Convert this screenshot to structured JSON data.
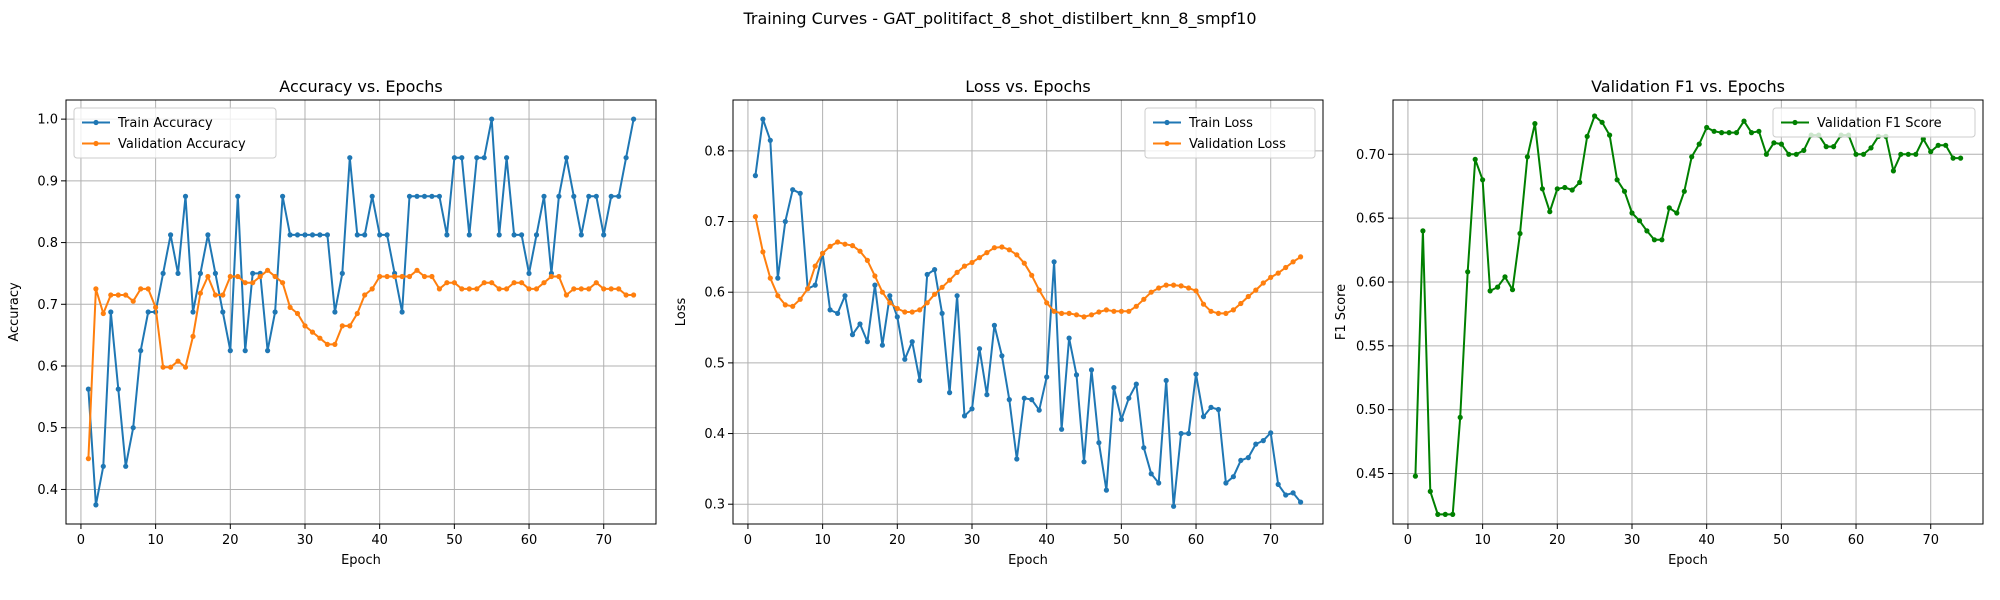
{
  "title": "Training Curves - GAT_politifact_8_shot_distilbert_knn_8_smpf10",
  "colors": {
    "train": "#1f77b4",
    "validation": "#ff7f0e",
    "f1": "#008000"
  },
  "chart_data": [
    {
      "type": "line",
      "title": "Accuracy vs. Epochs",
      "xlabel": "Epoch",
      "ylabel": "Accuracy",
      "xlim": [
        -2,
        77
      ],
      "ylim": [
        0.344,
        1.031
      ],
      "xticks": [
        0,
        10,
        20,
        30,
        40,
        50,
        60,
        70
      ],
      "yticks": [
        0.4,
        0.5,
        0.6,
        0.7,
        0.8,
        0.9,
        1.0
      ],
      "ytick_labels": [
        "0.4",
        "0.5",
        "0.6",
        "0.7",
        "0.8",
        "0.9",
        "1.0"
      ],
      "grid": true,
      "legend_loc": "upper left",
      "series": [
        {
          "name": "Train Accuracy",
          "color": "#1f77b4",
          "x": [
            1,
            2,
            3,
            4,
            5,
            6,
            7,
            8,
            9,
            10,
            11,
            12,
            13,
            14,
            15,
            16,
            17,
            18,
            19,
            20,
            21,
            22,
            23,
            24,
            25,
            26,
            27,
            28,
            29,
            30,
            31,
            32,
            33,
            34,
            35,
            36,
            37,
            38,
            39,
            40,
            41,
            42,
            43,
            44,
            45,
            46,
            47,
            48,
            49,
            50,
            51,
            52,
            53,
            54,
            55,
            56,
            57,
            58,
            59,
            60,
            61,
            62,
            63,
            64,
            65,
            66,
            67,
            68,
            69,
            70,
            71,
            72,
            73,
            74
          ],
          "y": [
            0.5625,
            0.375,
            0.4375,
            0.6875,
            0.5625,
            0.4375,
            0.5,
            0.625,
            0.6875,
            0.6875,
            0.75,
            0.8125,
            0.75,
            0.875,
            0.6875,
            0.75,
            0.8125,
            0.75,
            0.6875,
            0.625,
            0.875,
            0.625,
            0.75,
            0.75,
            0.625,
            0.6875,
            0.875,
            0.8125,
            0.8125,
            0.8125,
            0.8125,
            0.8125,
            0.8125,
            0.6875,
            0.75,
            0.9375,
            0.8125,
            0.8125,
            0.875,
            0.8125,
            0.8125,
            0.75,
            0.6875,
            0.875,
            0.875,
            0.875,
            0.875,
            0.875,
            0.8125,
            0.9375,
            0.9375,
            0.8125,
            0.9375,
            0.9375,
            1.0,
            0.8125,
            0.9375,
            0.8125,
            0.8125,
            0.75,
            0.8125,
            0.875,
            0.75,
            0.875,
            0.9375,
            0.875,
            0.8125,
            0.875,
            0.875,
            0.8125,
            0.875,
            0.875,
            0.9375,
            1.0
          ]
        },
        {
          "name": "Validation Accuracy",
          "color": "#ff7f0e",
          "x": [
            1,
            2,
            3,
            4,
            5,
            6,
            7,
            8,
            9,
            10,
            11,
            12,
            13,
            14,
            15,
            16,
            17,
            18,
            19,
            20,
            21,
            22,
            23,
            24,
            25,
            26,
            27,
            28,
            29,
            30,
            31,
            32,
            33,
            34,
            35,
            36,
            37,
            38,
            39,
            40,
            41,
            42,
            43,
            44,
            45,
            46,
            47,
            48,
            49,
            50,
            51,
            52,
            53,
            54,
            55,
            56,
            57,
            58,
            59,
            60,
            61,
            62,
            63,
            64,
            65,
            66,
            67,
            68,
            69,
            70,
            71,
            72,
            73,
            74
          ],
          "y": [
            0.45,
            0.725,
            0.685,
            0.715,
            0.715,
            0.715,
            0.705,
            0.725,
            0.725,
            0.695,
            0.598,
            0.598,
            0.608,
            0.598,
            0.648,
            0.718,
            0.745,
            0.715,
            0.715,
            0.745,
            0.745,
            0.735,
            0.735,
            0.745,
            0.755,
            0.745,
            0.735,
            0.695,
            0.685,
            0.665,
            0.655,
            0.645,
            0.635,
            0.635,
            0.665,
            0.665,
            0.685,
            0.715,
            0.725,
            0.745,
            0.745,
            0.745,
            0.745,
            0.745,
            0.755,
            0.745,
            0.745,
            0.725,
            0.735,
            0.735,
            0.725,
            0.725,
            0.725,
            0.735,
            0.735,
            0.725,
            0.725,
            0.735,
            0.735,
            0.725,
            0.725,
            0.735,
            0.745,
            0.745,
            0.715,
            0.725,
            0.725,
            0.725,
            0.735,
            0.725,
            0.725,
            0.725,
            0.715,
            0.715
          ]
        }
      ]
    },
    {
      "type": "line",
      "title": "Loss vs. Epochs",
      "xlabel": "Epoch",
      "ylabel": "Loss",
      "xlim": [
        -2,
        77
      ],
      "ylim": [
        0.272,
        0.872
      ],
      "xticks": [
        0,
        10,
        20,
        30,
        40,
        50,
        60,
        70
      ],
      "yticks": [
        0.3,
        0.4,
        0.5,
        0.6,
        0.7,
        0.8
      ],
      "ytick_labels": [
        "0.3",
        "0.4",
        "0.5",
        "0.6",
        "0.7",
        "0.8"
      ],
      "grid": true,
      "legend_loc": "upper right",
      "series": [
        {
          "name": "Train Loss",
          "color": "#1f77b4",
          "x": [
            1,
            2,
            3,
            4,
            5,
            6,
            7,
            8,
            9,
            10,
            11,
            12,
            13,
            14,
            15,
            16,
            17,
            18,
            19,
            20,
            21,
            22,
            23,
            24,
            25,
            26,
            27,
            28,
            29,
            30,
            31,
            32,
            33,
            34,
            35,
            36,
            37,
            38,
            39,
            40,
            41,
            42,
            43,
            44,
            45,
            46,
            47,
            48,
            49,
            50,
            51,
            52,
            53,
            54,
            55,
            56,
            57,
            58,
            59,
            60,
            61,
            62,
            63,
            64,
            65,
            66,
            67,
            68,
            69,
            70,
            71,
            72,
            73,
            74
          ],
          "y": [
            0.765,
            0.845,
            0.815,
            0.62,
            0.7,
            0.745,
            0.74,
            0.605,
            0.61,
            0.655,
            0.575,
            0.57,
            0.595,
            0.54,
            0.555,
            0.53,
            0.61,
            0.525,
            0.595,
            0.565,
            0.505,
            0.53,
            0.475,
            0.625,
            0.632,
            0.57,
            0.458,
            0.595,
            0.425,
            0.435,
            0.52,
            0.455,
            0.553,
            0.51,
            0.448,
            0.364,
            0.45,
            0.448,
            0.433,
            0.48,
            0.643,
            0.406,
            0.535,
            0.483,
            0.36,
            0.49,
            0.387,
            0.32,
            0.465,
            0.42,
            0.45,
            0.47,
            0.38,
            0.343,
            0.33,
            0.475,
            0.297,
            0.4,
            0.4,
            0.484,
            0.424,
            0.437,
            0.434,
            0.33,
            0.339,
            0.362,
            0.366,
            0.385,
            0.39,
            0.401,
            0.328,
            0.313,
            0.316,
            0.303
          ]
        },
        {
          "name": "Validation Loss",
          "color": "#ff7f0e",
          "x": [
            1,
            2,
            3,
            4,
            5,
            6,
            7,
            8,
            9,
            10,
            11,
            12,
            13,
            14,
            15,
            16,
            17,
            18,
            19,
            20,
            21,
            22,
            23,
            24,
            25,
            26,
            27,
            28,
            29,
            30,
            31,
            32,
            33,
            34,
            35,
            36,
            37,
            38,
            39,
            40,
            41,
            42,
            43,
            44,
            45,
            46,
            47,
            48,
            49,
            50,
            51,
            52,
            53,
            54,
            55,
            56,
            57,
            58,
            59,
            60,
            61,
            62,
            63,
            64,
            65,
            66,
            67,
            68,
            69,
            70,
            71,
            72,
            73,
            74
          ],
          "y": [
            0.707,
            0.657,
            0.62,
            0.595,
            0.582,
            0.58,
            0.59,
            0.605,
            0.637,
            0.655,
            0.665,
            0.671,
            0.668,
            0.666,
            0.658,
            0.645,
            0.623,
            0.6,
            0.585,
            0.577,
            0.572,
            0.572,
            0.575,
            0.585,
            0.597,
            0.607,
            0.617,
            0.628,
            0.637,
            0.642,
            0.649,
            0.656,
            0.663,
            0.664,
            0.66,
            0.653,
            0.641,
            0.624,
            0.603,
            0.585,
            0.573,
            0.57,
            0.57,
            0.568,
            0.565,
            0.568,
            0.572,
            0.575,
            0.573,
            0.573,
            0.573,
            0.58,
            0.59,
            0.6,
            0.606,
            0.61,
            0.61,
            0.609,
            0.606,
            0.602,
            0.583,
            0.573,
            0.57,
            0.57,
            0.575,
            0.584,
            0.594,
            0.603,
            0.613,
            0.621,
            0.627,
            0.635,
            0.643,
            0.65
          ]
        }
      ]
    },
    {
      "type": "line",
      "title": "Validation F1 vs. Epochs",
      "xlabel": "Epoch",
      "ylabel": "F1 Score",
      "xlim": [
        -2,
        77
      ],
      "ylim": [
        0.4105,
        0.7425
      ],
      "xticks": [
        0,
        10,
        20,
        30,
        40,
        50,
        60,
        70
      ],
      "yticks": [
        0.45,
        0.5,
        0.55,
        0.6,
        0.65,
        0.7
      ],
      "ytick_labels": [
        "0.45",
        "0.50",
        "0.55",
        "0.60",
        "0.65",
        "0.70"
      ],
      "grid": true,
      "legend_loc": "upper right",
      "series": [
        {
          "name": "Validation F1 Score",
          "color": "#008000",
          "x": [
            1,
            2,
            3,
            4,
            5,
            6,
            7,
            8,
            9,
            10,
            11,
            12,
            13,
            14,
            15,
            16,
            17,
            18,
            19,
            20,
            21,
            22,
            23,
            24,
            25,
            26,
            27,
            28,
            29,
            30,
            31,
            32,
            33,
            34,
            35,
            36,
            37,
            38,
            39,
            40,
            41,
            42,
            43,
            44,
            45,
            46,
            47,
            48,
            49,
            50,
            51,
            52,
            53,
            54,
            55,
            56,
            57,
            58,
            59,
            60,
            61,
            62,
            63,
            64,
            65,
            66,
            67,
            68,
            69,
            70,
            71,
            72,
            73,
            74
          ],
          "y": [
            0.448,
            0.64,
            0.436,
            0.418,
            0.418,
            0.418,
            0.494,
            0.608,
            0.696,
            0.68,
            0.593,
            0.596,
            0.604,
            0.594,
            0.638,
            0.698,
            0.724,
            0.673,
            0.655,
            0.673,
            0.674,
            0.672,
            0.678,
            0.714,
            0.73,
            0.725,
            0.715,
            0.68,
            0.671,
            0.654,
            0.648,
            0.64,
            0.633,
            0.633,
            0.658,
            0.654,
            0.671,
            0.698,
            0.708,
            0.721,
            0.718,
            0.717,
            0.717,
            0.717,
            0.726,
            0.717,
            0.718,
            0.7,
            0.709,
            0.708,
            0.7,
            0.7,
            0.703,
            0.715,
            0.715,
            0.706,
            0.706,
            0.715,
            0.715,
            0.7,
            0.7,
            0.705,
            0.714,
            0.714,
            0.687,
            0.7,
            0.7,
            0.7,
            0.712,
            0.702,
            0.707,
            0.707,
            0.697,
            0.697
          ]
        }
      ]
    }
  ]
}
